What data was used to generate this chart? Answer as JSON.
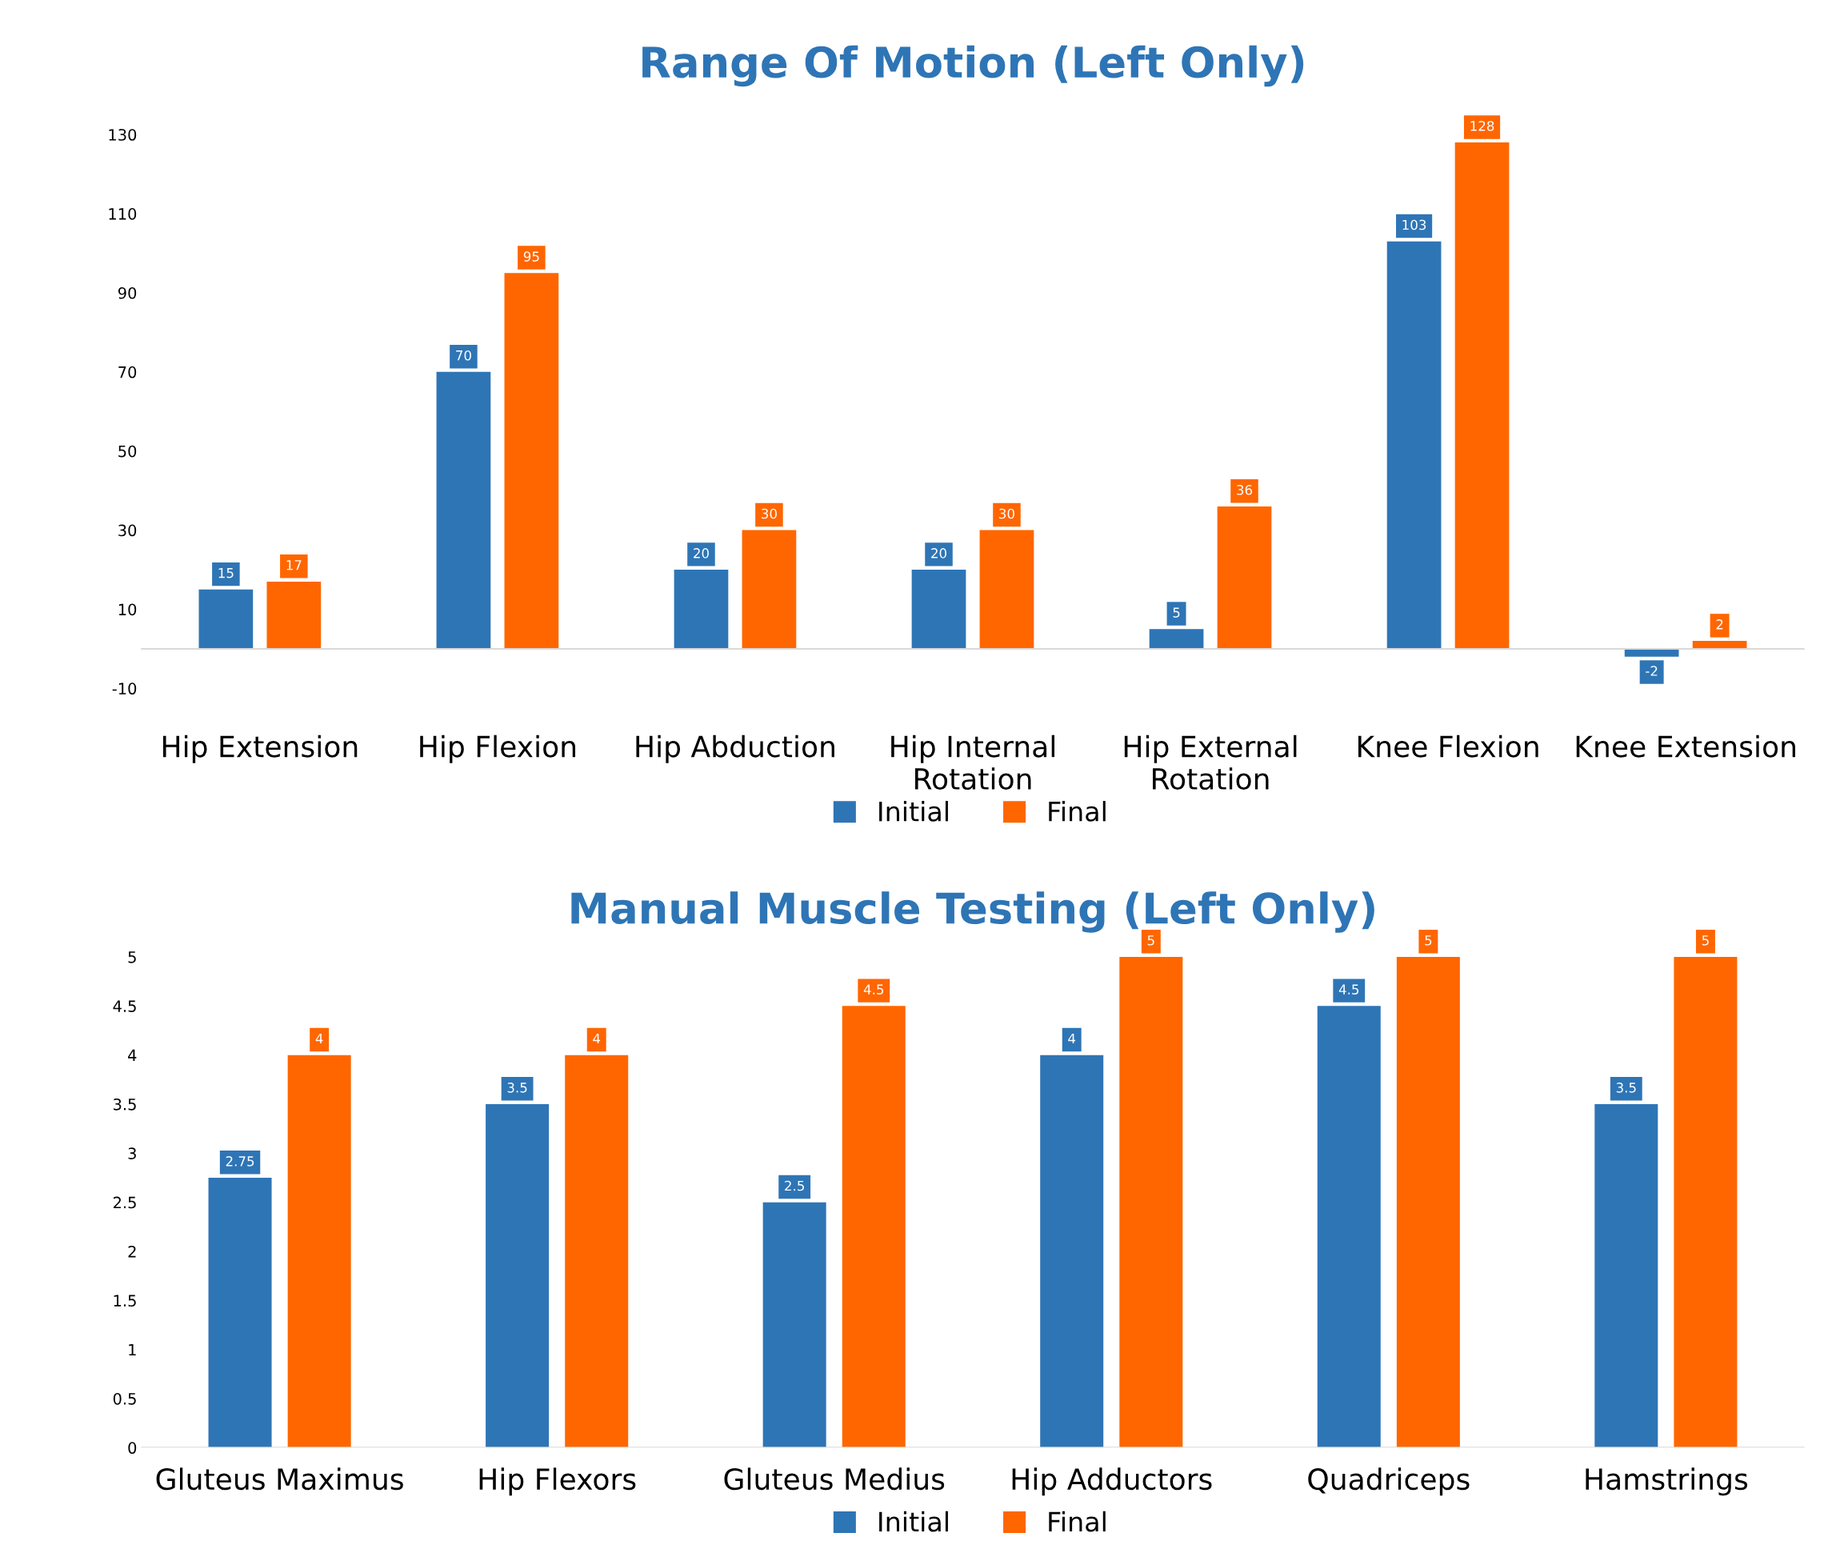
{
  "chart_data": [
    {
      "type": "bar",
      "title": "Range Of Motion (Left Only)",
      "categories": [
        "Hip Extension",
        "Hip Flexion",
        "Hip Abduction",
        "Hip Internal\nRotation",
        "Hip External\nRotation",
        "Knee Flexion",
        "Knee Extension"
      ],
      "series": [
        {
          "name": "Initial",
          "color": "#2e75b6",
          "values": [
            15,
            70,
            20,
            20,
            5,
            103,
            -2
          ]
        },
        {
          "name": "Final",
          "color": "#ff6600",
          "values": [
            17,
            95,
            30,
            30,
            36,
            128,
            2
          ]
        }
      ],
      "ylim": [
        -10,
        136
      ],
      "yticks": [
        -10,
        10,
        30,
        50,
        70,
        90,
        110,
        130
      ],
      "grid": false,
      "legend": "bottom",
      "data_labels": true
    },
    {
      "type": "bar",
      "title": "Manual Muscle Testing (Left Only)",
      "categories": [
        "Gluteus Maximus",
        "Hip Flexors",
        "Gluteus Medius",
        "Hip Adductors",
        "Quadriceps",
        "Hamstrings"
      ],
      "series": [
        {
          "name": "Initial",
          "color": "#2e75b6",
          "values": [
            2.75,
            3.5,
            2.5,
            4,
            4.5,
            3.5
          ]
        },
        {
          "name": "Final",
          "color": "#ff6600",
          "values": [
            4,
            4,
            4.5,
            5,
            5,
            5
          ]
        }
      ],
      "ylim": [
        0,
        5
      ],
      "yticks": [
        0,
        0.5,
        1,
        1.5,
        2,
        2.5,
        3,
        3.5,
        4,
        4.5,
        5
      ],
      "grid": false,
      "legend": "bottom",
      "data_labels": true
    }
  ]
}
